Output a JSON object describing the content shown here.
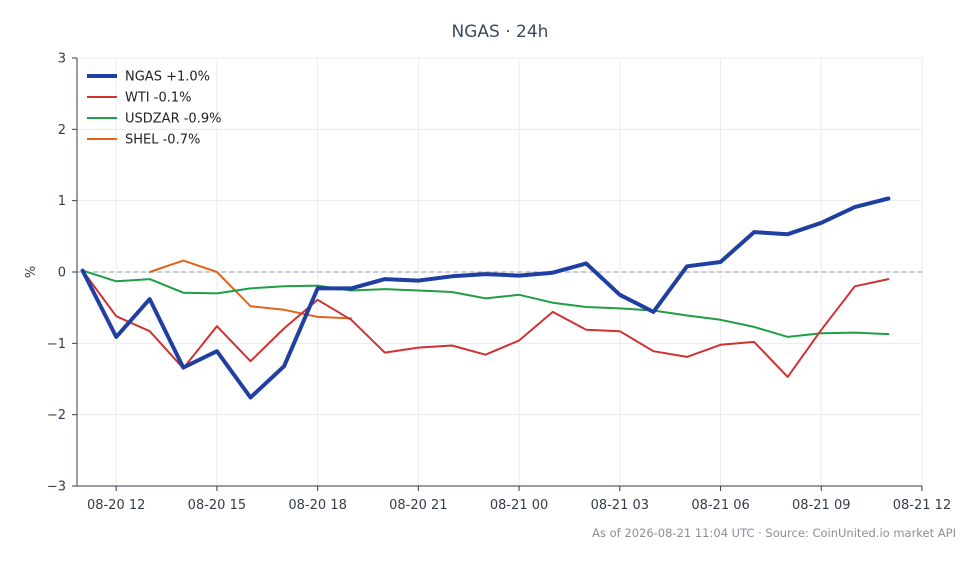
{
  "chart_data": {
    "type": "line",
    "title": "NGAS · 24h",
    "xlabel": "",
    "ylabel": "%",
    "ylim": [
      -3,
      3
    ],
    "xlim": [
      "2026-08-20 10:50",
      "2026-08-21 12:00"
    ],
    "yticks": [
      -3,
      -2,
      -1,
      0,
      1,
      2,
      3
    ],
    "ytick_labels": [
      "−3",
      "−2",
      "−1",
      "0",
      "1",
      "2",
      "3"
    ],
    "xticks": [
      "2026-08-20 12:00",
      "2026-08-20 15:00",
      "2026-08-20 18:00",
      "2026-08-20 21:00",
      "2026-08-21 00:00",
      "2026-08-21 03:00",
      "2026-08-21 06:00",
      "2026-08-21 09:00",
      "2026-08-21 12:00"
    ],
    "xtick_labels": [
      "08-20 12",
      "08-20 15",
      "08-20 18",
      "08-20 21",
      "08-21 00",
      "08-21 03",
      "08-21 06",
      "08-21 09",
      "08-21 12"
    ],
    "grid": true,
    "legend_position": "top-left",
    "zero_line": true,
    "series": [
      {
        "name": "NGAS +1.0%",
        "color": "#1f3fa3",
        "x": [
          "2026-08-20 11:00",
          "2026-08-20 12:00",
          "2026-08-20 13:00",
          "2026-08-20 14:00",
          "2026-08-20 15:00",
          "2026-08-20 16:00",
          "2026-08-20 17:00",
          "2026-08-20 18:00",
          "2026-08-20 19:00",
          "2026-08-20 20:00",
          "2026-08-20 21:00",
          "2026-08-20 22:00",
          "2026-08-20 23:00",
          "2026-08-21 00:00",
          "2026-08-21 01:00",
          "2026-08-21 02:00",
          "2026-08-21 03:00",
          "2026-08-21 04:00",
          "2026-08-21 05:00",
          "2026-08-21 06:00",
          "2026-08-21 07:00",
          "2026-08-21 08:00",
          "2026-08-21 09:00",
          "2026-08-21 10:00",
          "2026-08-21 11:00"
        ],
        "y": [
          0.02,
          -0.91,
          -0.38,
          -1.34,
          -1.11,
          -1.76,
          -1.32,
          -0.23,
          -0.23,
          -0.1,
          -0.12,
          -0.06,
          -0.03,
          -0.05,
          -0.01,
          0.12,
          -0.32,
          -0.56,
          0.08,
          0.14,
          0.56,
          0.53,
          0.69,
          0.91,
          1.03
        ]
      },
      {
        "name": "WTI -0.1%",
        "color": "#d03131",
        "x": [
          "2026-08-20 11:00",
          "2026-08-20 12:00",
          "2026-08-20 13:00",
          "2026-08-20 14:00",
          "2026-08-20 15:00",
          "2026-08-20 16:00",
          "2026-08-20 17:00",
          "2026-08-20 18:00",
          "2026-08-20 19:00",
          "2026-08-20 20:00",
          "2026-08-20 21:00",
          "2026-08-20 22:00",
          "2026-08-20 23:00",
          "2026-08-21 00:00",
          "2026-08-21 01:00",
          "2026-08-21 02:00",
          "2026-08-21 03:00",
          "2026-08-21 04:00",
          "2026-08-21 05:00",
          "2026-08-21 06:00",
          "2026-08-21 07:00",
          "2026-08-21 08:00",
          "2026-08-21 09:00",
          "2026-08-21 10:00",
          "2026-08-21 11:00"
        ],
        "y": [
          0.02,
          -0.62,
          -0.83,
          -1.35,
          -0.76,
          -1.25,
          -0.79,
          -0.39,
          -0.67,
          -1.13,
          -1.06,
          -1.03,
          -1.16,
          -0.96,
          -0.56,
          -0.81,
          -0.83,
          -1.11,
          -1.19,
          -1.02,
          -0.98,
          -1.47,
          -0.81,
          -0.2,
          -0.1
        ]
      },
      {
        "name": "USDZAR -0.9%",
        "color": "#1f9e45",
        "x": [
          "2026-08-20 11:00",
          "2026-08-20 12:00",
          "2026-08-20 13:00",
          "2026-08-20 14:00",
          "2026-08-20 15:00",
          "2026-08-20 16:00",
          "2026-08-20 17:00",
          "2026-08-20 18:00",
          "2026-08-20 19:00",
          "2026-08-20 20:00",
          "2026-08-20 21:00",
          "2026-08-20 22:00",
          "2026-08-20 23:00",
          "2026-08-21 00:00",
          "2026-08-21 01:00",
          "2026-08-21 02:00",
          "2026-08-21 03:00",
          "2026-08-21 04:00",
          "2026-08-21 05:00",
          "2026-08-21 06:00",
          "2026-08-21 07:00",
          "2026-08-21 08:00",
          "2026-08-21 09:00",
          "2026-08-21 10:00",
          "2026-08-21 11:00"
        ],
        "y": [
          0.02,
          -0.13,
          -0.1,
          -0.29,
          -0.3,
          -0.23,
          -0.2,
          -0.19,
          -0.26,
          -0.24,
          -0.26,
          -0.28,
          -0.37,
          -0.32,
          -0.43,
          -0.49,
          -0.51,
          -0.54,
          -0.61,
          -0.67,
          -0.77,
          -0.91,
          -0.86,
          -0.85,
          -0.87
        ]
      },
      {
        "name": "SHEL -0.7%",
        "color": "#e0651c",
        "x": [
          "2026-08-20 13:00",
          "2026-08-20 14:00",
          "2026-08-20 15:00",
          "2026-08-20 16:00",
          "2026-08-20 17:00",
          "2026-08-20 18:00",
          "2026-08-20 19:00"
        ],
        "y": [
          0.0,
          0.16,
          0.0,
          -0.48,
          -0.53,
          -0.63,
          -0.65
        ]
      }
    ]
  },
  "footer": "As of 2026-08-21 11:04 UTC · Source: CoinUnited.io market API"
}
